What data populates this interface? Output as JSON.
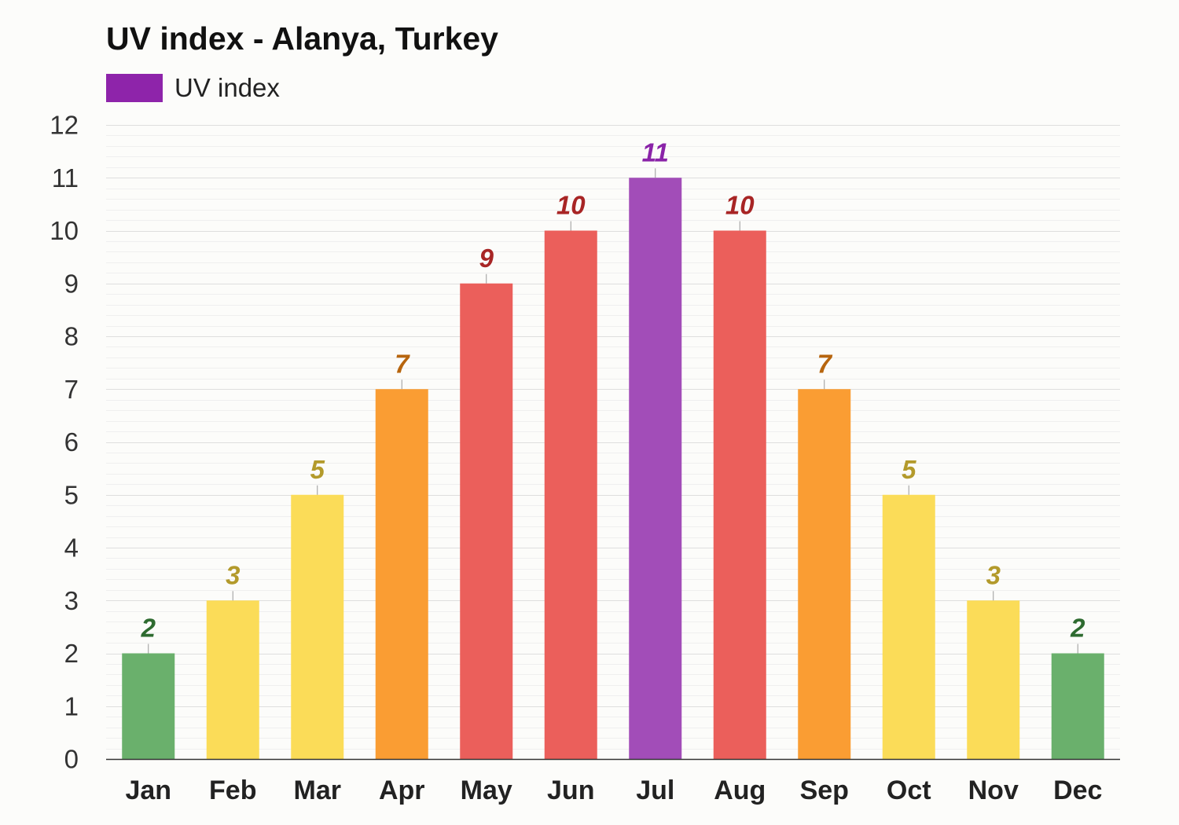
{
  "chart_data": {
    "type": "bar",
    "title": "UV index - Alanya, Turkey",
    "legend": {
      "position": "top-left",
      "entries": [
        {
          "label": "UV index",
          "color": "#8e24aa"
        }
      ]
    },
    "categories": [
      "Jan",
      "Feb",
      "Mar",
      "Apr",
      "May",
      "Jun",
      "Jul",
      "Aug",
      "Sep",
      "Oct",
      "Nov",
      "Dec"
    ],
    "series": [
      {
        "name": "UV index",
        "values": [
          2,
          3,
          5,
          7,
          9,
          10,
          11,
          10,
          7,
          5,
          3,
          2
        ]
      }
    ],
    "ylim": [
      0,
      12
    ],
    "yticks": [
      "0",
      "1",
      "2",
      "3",
      "4",
      "5",
      "6",
      "7",
      "8",
      "9",
      "10",
      "11",
      "12"
    ],
    "grid": true,
    "data_labels": true,
    "color_scale": {
      "low": {
        "bar": "#6ab06c",
        "label": "#2e6b30"
      },
      "moderate": {
        "bar": "#fbdc58",
        "label": "#b39a2b"
      },
      "high": {
        "bar": "#fa9d33",
        "label": "#b7650e"
      },
      "very_high": {
        "bar": "#eb5f5b",
        "label": "#a82525"
      },
      "extreme": {
        "bar": "#a24db8",
        "label": "#8a23a8"
      }
    }
  }
}
